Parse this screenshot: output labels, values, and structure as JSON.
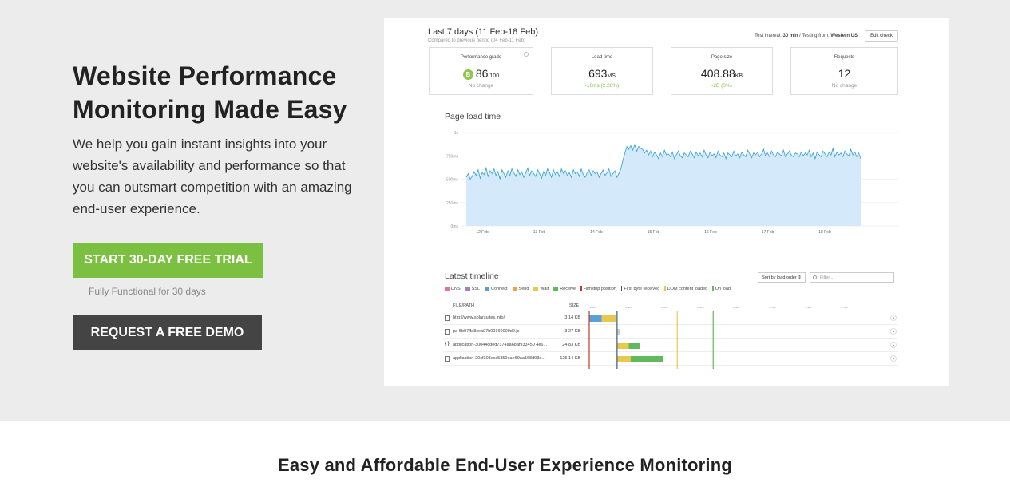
{
  "hero": {
    "title": "Website Performance Monitoring Made Easy",
    "description": "We help you gain instant insights into your website's availability and performance so that you can outsmart competition with an amazing end-user experience.",
    "trial_button": "START 30-DAY FREE TRIAL",
    "trial_note": "Fully Functional for 30 days",
    "demo_button": "REQUEST A FREE DEMO"
  },
  "dashboard": {
    "title": "Last 7 days (11 Feb-18 Feb)",
    "subtitle": "Compared to previous period (04 Feb-11 Feb)",
    "interval_label": "Test interval:",
    "interval_value": "30 min",
    "testing_label": "/ Testing from:",
    "testing_value": "Western US",
    "edit_button": "Edit check",
    "stats": [
      {
        "label": "Performance grade",
        "grade": "B",
        "value": "86",
        "unit": "/100",
        "change": "No change",
        "change_color": "gray"
      },
      {
        "label": "Load time",
        "value": "693",
        "unit": "MS",
        "change": "-16ms (2.26%)",
        "change_color": "green"
      },
      {
        "label": "Page size",
        "value": "408.88",
        "unit": "KB",
        "change": "-2B (0%)",
        "change_color": "green"
      },
      {
        "label": "Requests",
        "value": "12",
        "unit": "",
        "change": "No change",
        "change_color": "gray"
      }
    ]
  },
  "chart_data": {
    "type": "area",
    "title": "Page load time",
    "y_ticks": [
      "1s",
      "750ms",
      "500ms",
      "250ms",
      "0ms"
    ],
    "x_ticks": [
      "12 Feb",
      "13 Feb",
      "14 Feb",
      "15 Feb",
      "16 Feb",
      "17 Feb",
      "18 Feb"
    ],
    "ylim": [
      0,
      1000
    ],
    "series": [
      {
        "values": [
          520,
          560,
          500,
          530,
          580,
          540,
          600,
          510,
          570,
          550,
          620,
          530,
          590,
          560,
          610,
          540,
          580,
          500,
          600,
          560,
          520,
          590,
          540,
          610,
          570,
          530,
          600,
          550,
          580,
          520,
          570,
          620,
          540,
          590,
          560,
          530,
          600,
          560,
          510,
          580,
          540,
          610,
          570,
          520,
          600,
          550,
          580,
          530,
          610,
          560,
          590,
          540,
          570,
          520,
          600,
          560,
          580,
          530,
          610,
          550,
          520,
          570,
          600,
          540,
          590,
          560,
          580,
          520,
          560,
          600,
          540,
          570,
          610,
          530,
          560,
          590,
          520,
          560,
          610,
          700,
          780,
          850,
          820,
          860,
          810,
          870,
          800,
          850,
          830,
          820,
          780,
          810,
          760,
          800,
          740,
          790,
          760,
          720,
          780,
          740,
          810,
          760,
          770,
          740,
          790,
          720,
          760,
          800,
          750,
          730,
          780,
          760,
          740,
          800,
          770,
          730,
          790,
          750,
          780,
          740,
          810,
          760,
          730,
          790,
          750,
          770,
          730,
          800,
          760,
          740,
          780,
          720,
          780,
          760,
          740,
          800,
          750,
          770,
          730,
          790,
          760,
          740,
          810,
          770,
          730,
          780,
          760,
          790,
          740,
          770,
          820,
          750,
          780,
          740,
          800,
          760,
          740,
          790,
          770,
          750,
          810,
          740,
          770,
          800,
          760,
          740,
          780,
          770,
          740,
          790,
          750,
          780,
          760,
          810,
          740,
          780,
          720,
          790,
          760,
          740,
          800,
          770,
          740,
          790,
          760,
          830,
          740,
          790,
          760,
          780,
          740,
          800,
          770,
          750,
          820,
          760,
          790,
          740,
          780,
          720
        ]
      }
    ]
  },
  "timeline": {
    "title": "Latest timeline",
    "sort_label": "Sort by load order ⇕",
    "filter_placeholder": "Filter...",
    "legend": [
      {
        "label": "DNS",
        "color": "#e86fa6",
        "kind": "box"
      },
      {
        "label": "SSL",
        "color": "#a77fc1",
        "kind": "box"
      },
      {
        "label": "Connect",
        "color": "#5aa0d8",
        "kind": "box"
      },
      {
        "label": "Send",
        "color": "#f0a24a",
        "kind": "box"
      },
      {
        "label": "Wait",
        "color": "#e6c94e",
        "kind": "box"
      },
      {
        "label": "Receive",
        "color": "#62b95b",
        "kind": "box"
      },
      {
        "label": "Filmstrip position",
        "color": "#c0392b",
        "kind": "line"
      },
      {
        "label": "First byte received",
        "color": "#3c5a7a",
        "kind": "line"
      },
      {
        "label": "DOM content loaded",
        "color": "#e6c94e",
        "kind": "line"
      },
      {
        "label": "On load",
        "color": "#62b95b",
        "kind": "line"
      }
    ],
    "col_file": "FILE/PATH",
    "col_size": "SIZE",
    "axis_ticks": [
      "0.0s",
      "0.2s",
      "0.4s",
      "0.6s",
      "0.8s",
      "1.0s",
      "1.2s",
      "1.4s"
    ],
    "rows": [
      {
        "icon": "document-icon",
        "name": "http://www.solarsuites.info/",
        "size": "3.14 KB",
        "segments": [
          {
            "start": 0.0,
            "end": 0.07,
            "color": "#5aa0d8"
          },
          {
            "start": 0.07,
            "end": 0.15,
            "color": "#e6c94e"
          }
        ]
      },
      {
        "icon": "image-icon",
        "name": "pa-5b97ffa8cea07b00160000d2.js",
        "size": "3.27 KB",
        "segments": [
          {
            "start": 0.155,
            "end": 0.17,
            "color": "#cfcfcf"
          }
        ]
      },
      {
        "icon": "code-icon",
        "name": "application-30044cded7374aa68af933450 4e6...",
        "size": "24.83 KB",
        "segments": [
          {
            "start": 0.155,
            "end": 0.22,
            "color": "#e6c94e"
          },
          {
            "start": 0.22,
            "end": 0.28,
            "color": "#62b95b"
          }
        ]
      },
      {
        "icon": "image-icon",
        "name": "application-20cf303ecc5350eae60aa168d03a...",
        "size": "125.14 KB",
        "segments": [
          {
            "start": 0.155,
            "end": 0.23,
            "color": "#e6c94e"
          },
          {
            "start": 0.23,
            "end": 0.41,
            "color": "#62b95b"
          }
        ]
      }
    ],
    "markers": [
      {
        "t": 0.0,
        "color": "#c0392b"
      },
      {
        "t": 0.155,
        "color": "#3c5a7a"
      },
      {
        "t": 0.49,
        "color": "#e6c94e"
      },
      {
        "t": 0.69,
        "color": "#62b95b"
      }
    ]
  },
  "bottom": {
    "title": "Easy and Affordable End-User Experience Monitoring"
  }
}
